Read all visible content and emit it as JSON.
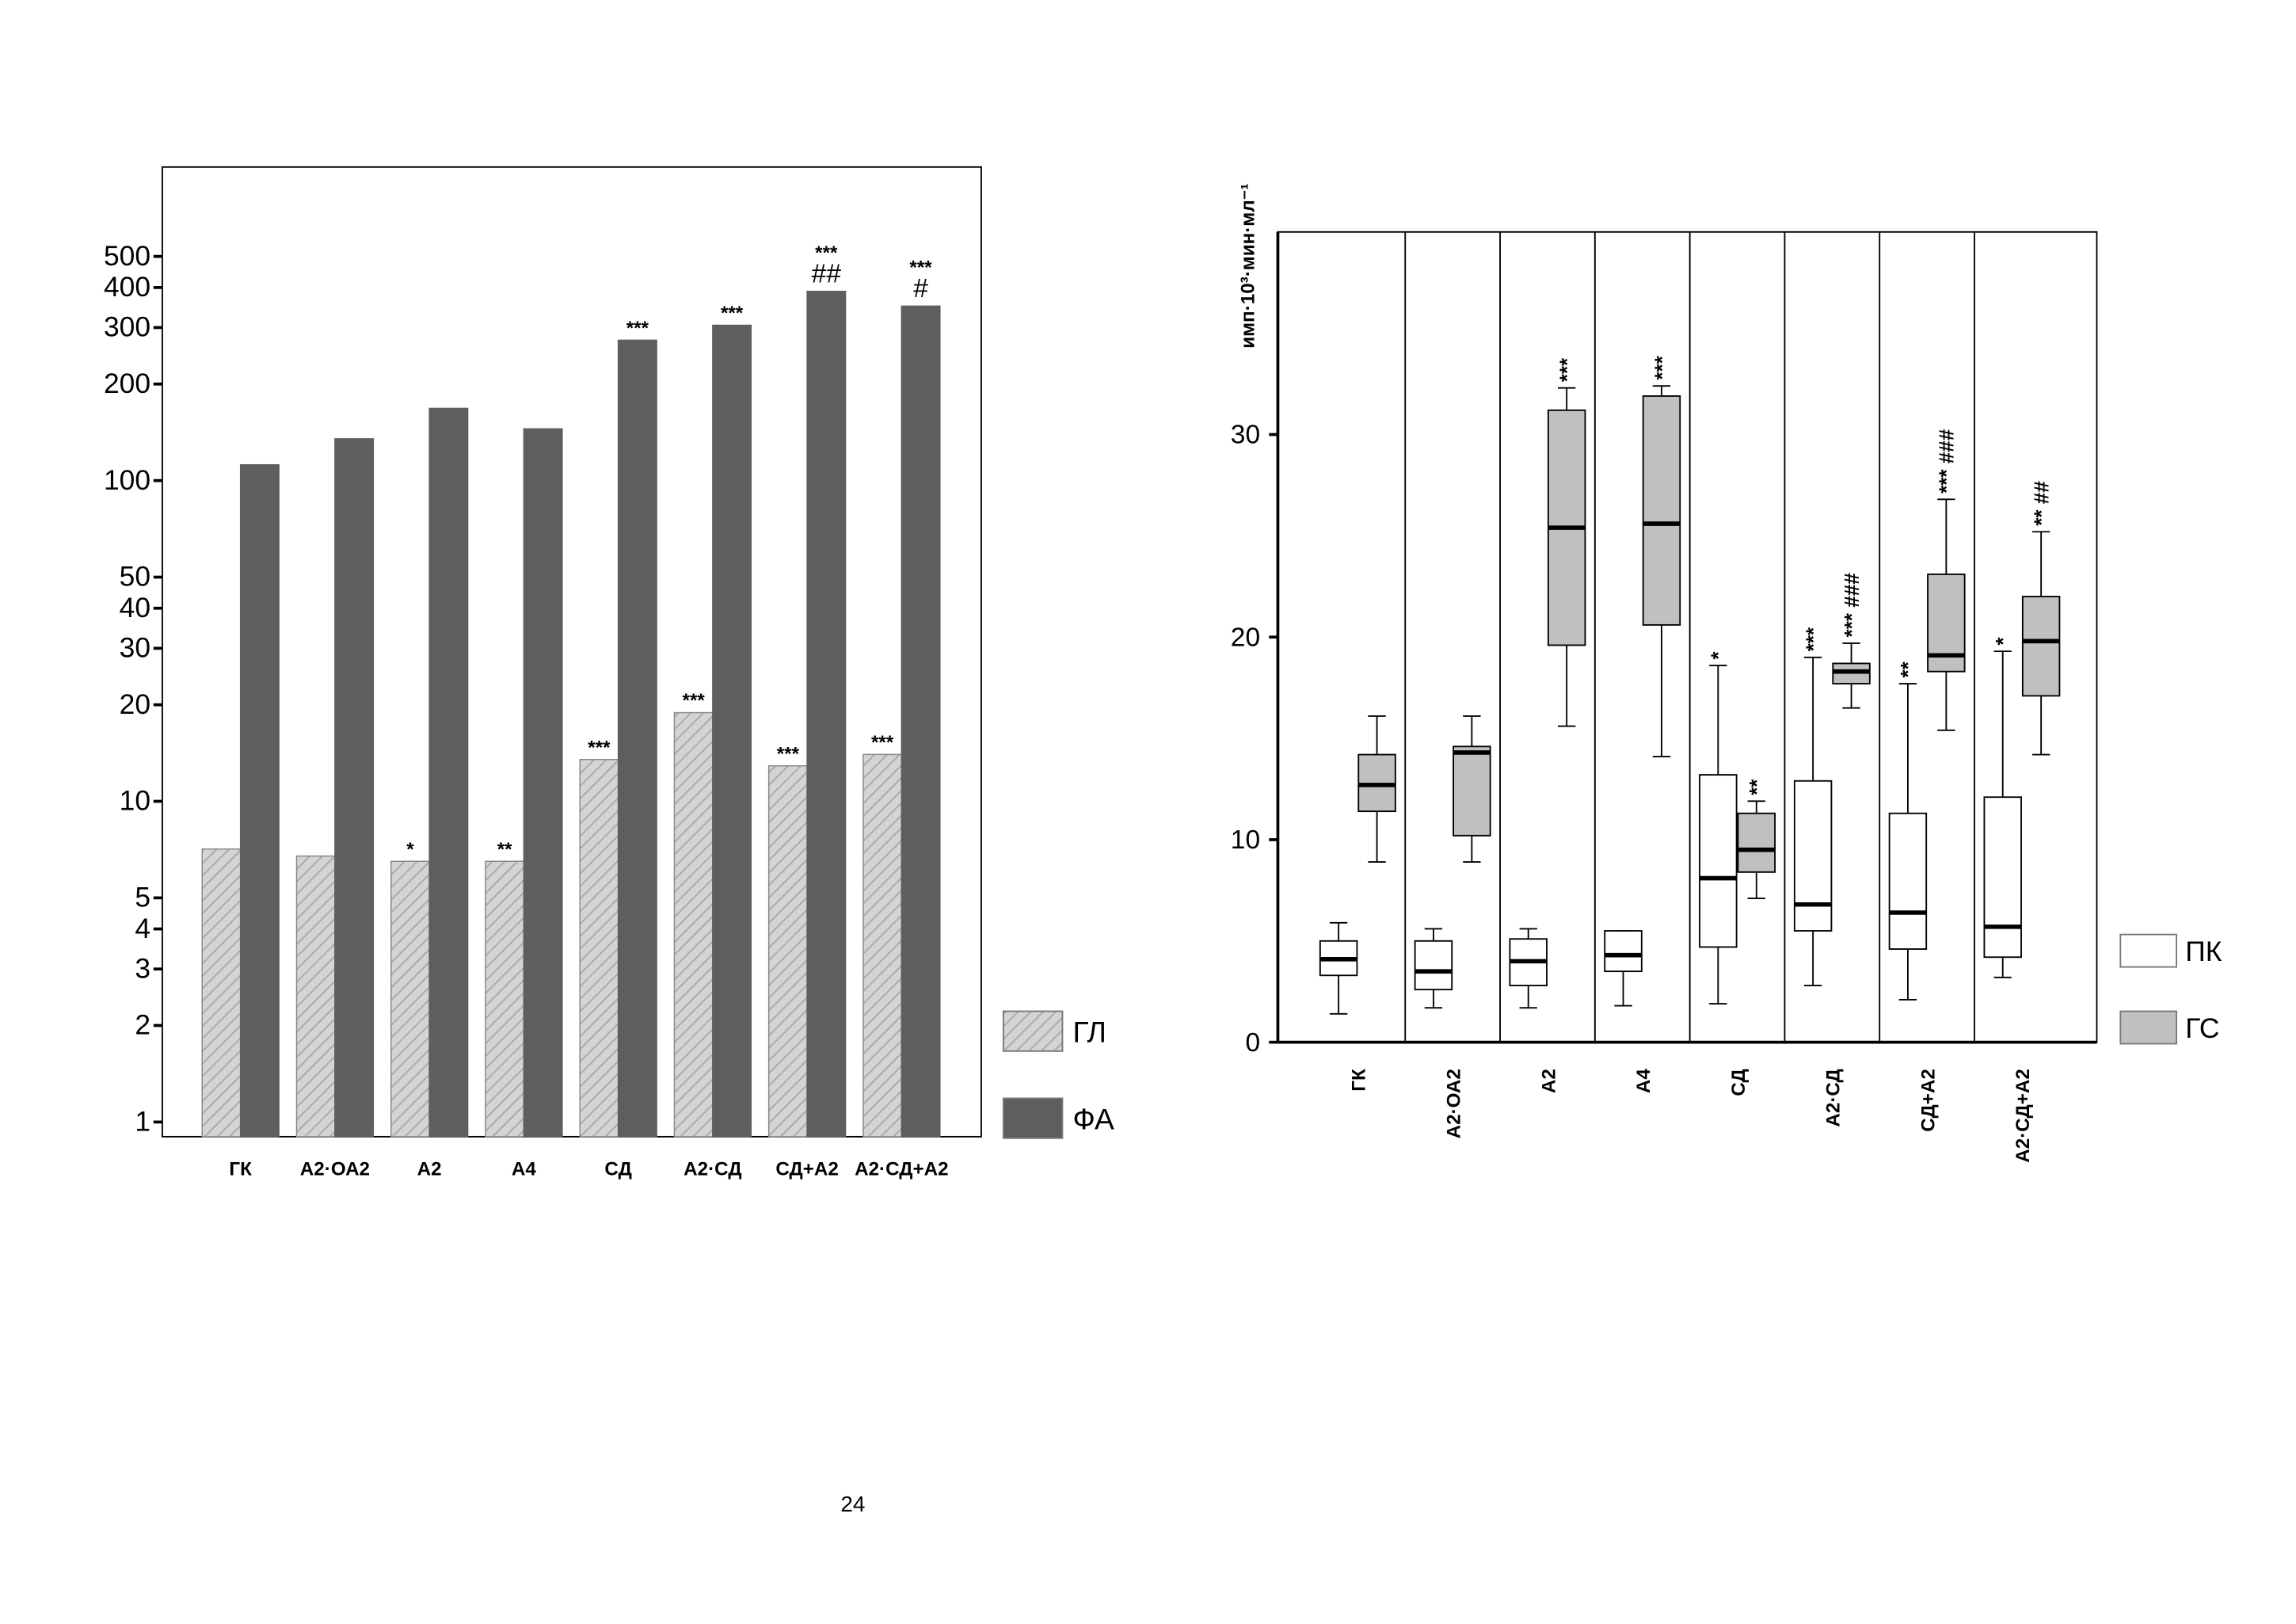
{
  "chart_data": [
    {
      "type": "bar",
      "log_scale": true,
      "categories": [
        "ГК",
        "А2·ОА2",
        "А2",
        "А4",
        "СД",
        "А2·СД",
        "СД+А2",
        "А2·СД+А2"
      ],
      "series": [
        {
          "name": "ГЛ",
          "color": "#d4d4d4",
          "pattern": "hatch",
          "values": [
            7.1,
            6.75,
            6.5,
            6.5,
            13.5,
            18.9,
            12.9,
            14.0
          ],
          "annotations": [
            null,
            null,
            "*",
            "**",
            "***",
            "***",
            "***",
            "***"
          ]
        },
        {
          "name": "ФА",
          "color": "#5e5e5e",
          "values": [
            112,
            135,
            168,
            145,
            274,
            305,
            389,
            350
          ],
          "annotations": [
            null,
            null,
            null,
            null,
            "***",
            "***",
            "***",
            "***"
          ],
          "hash_annotations": [
            null,
            null,
            null,
            null,
            null,
            null,
            "##",
            "#"
          ]
        }
      ],
      "ylim": [
        0.9,
        950
      ],
      "yticks": [
        1,
        2,
        3,
        4,
        5,
        10,
        20,
        30,
        40,
        50,
        100,
        200,
        300,
        400,
        500
      ],
      "grid": false,
      "legend": "lower right outside"
    },
    {
      "type": "box",
      "y_label": "имп·10³·мин·мл⁻¹",
      "categories": [
        "ГК",
        "А2·ОА2",
        "А2",
        "А4",
        "СД",
        "А2·СД",
        "СД+А2",
        "А2·СД+А2"
      ],
      "series": [
        {
          "name": "ПК",
          "color": "#ffffff",
          "whisker_low": [
            1.4,
            1.7,
            1.7,
            1.8,
            1.9,
            2.8,
            2.1,
            3.2
          ],
          "q1": [
            3.3,
            2.6,
            2.8,
            3.5,
            4.7,
            5.5,
            4.6,
            4.2
          ],
          "median": [
            4.1,
            3.5,
            4.0,
            4.3,
            8.1,
            6.8,
            6.4,
            5.7
          ],
          "q3": [
            5.0,
            5.0,
            5.1,
            5.5,
            13.2,
            12.9,
            11.3,
            12.1
          ],
          "whisker_high": [
            5.9,
            5.6,
            5.6,
            5.5,
            18.6,
            19.0,
            17.7,
            19.3
          ],
          "annotations": [
            null,
            null,
            null,
            null,
            "*",
            "***",
            "**",
            "*"
          ]
        },
        {
          "name": "ГС",
          "color": "#c0c0c0",
          "whisker_low": [
            8.9,
            8.9,
            15.6,
            14.1,
            7.1,
            16.5,
            15.4,
            14.2
          ],
          "q1": [
            11.4,
            10.2,
            19.6,
            20.6,
            8.4,
            17.7,
            18.3,
            17.1
          ],
          "median": [
            12.7,
            14.3,
            25.4,
            25.6,
            9.5,
            18.3,
            19.1,
            19.8
          ],
          "q3": [
            14.2,
            14.6,
            31.2,
            31.9,
            11.3,
            18.7,
            23.1,
            22.0
          ],
          "whisker_high": [
            16.1,
            16.1,
            32.3,
            32.4,
            11.9,
            19.7,
            26.8,
            25.2
          ],
          "annotations": [
            null,
            null,
            "***",
            "***",
            "**",
            "*** ###",
            "*** ###",
            "** ##"
          ]
        }
      ],
      "ylim": [
        0,
        40
      ],
      "yticks": [
        0,
        10,
        20,
        30
      ],
      "grid": false,
      "legend": "lower right outside"
    }
  ],
  "page_number": "24"
}
